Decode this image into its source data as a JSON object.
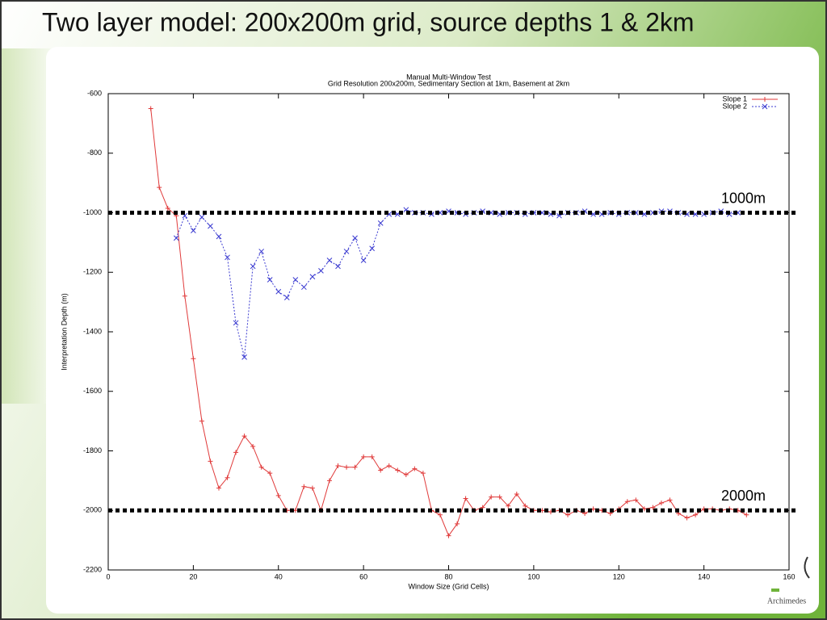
{
  "slide_title": "Two layer model: 200x200m grid, source depths 1 & 2km",
  "logo": "Archimedes",
  "chart_data": {
    "type": "line",
    "title": "Manual Multi-Window Test",
    "subtitle": "Grid Resolution 200x200m, Sedimentary Section at 1km, Basement at 2km",
    "x_label": "Window Size (Grid Cells)",
    "y_label": "Interpretation Depth (m)",
    "xlim": [
      0,
      160
    ],
    "xticks": [
      0,
      20,
      40,
      60,
      80,
      100,
      120,
      140,
      160
    ],
    "ylim": [
      -2200,
      -600
    ],
    "yticks": [
      -2200,
      -2000,
      -1800,
      -1600,
      -1400,
      -1200,
      -1000,
      -800,
      -600
    ],
    "grid": false,
    "legend": "top-right",
    "series": [
      {
        "name": "Slope 1",
        "color": "#e03a3a",
        "marker": "+",
        "x": [
          10,
          12,
          14,
          16,
          18,
          20,
          22,
          24,
          26,
          28,
          30,
          32,
          34,
          36,
          38,
          40,
          42,
          44,
          46,
          48,
          50,
          52,
          54,
          56,
          58,
          60,
          62,
          64,
          66,
          68,
          70,
          72,
          74,
          76,
          78,
          80,
          82,
          84,
          86,
          88,
          90,
          92,
          94,
          96,
          98,
          100,
          102,
          104,
          106,
          108,
          110,
          112,
          114,
          116,
          118,
          120,
          122,
          124,
          126,
          128,
          130,
          132,
          134,
          136,
          138,
          140,
          142,
          144,
          146,
          148,
          150
        ],
        "values": [
          -650,
          -915,
          -985,
          -1010,
          -1280,
          -1490,
          -1700,
          -1835,
          -1925,
          -1890,
          -1805,
          -1750,
          -1785,
          -1855,
          -1875,
          -1950,
          -2000,
          -2000,
          -1920,
          -1925,
          -2000,
          -1900,
          -1850,
          -1855,
          -1855,
          -1820,
          -1820,
          -1865,
          -1850,
          -1865,
          -1880,
          -1860,
          -1875,
          -2000,
          -2015,
          -2085,
          -2045,
          -1960,
          -2000,
          -1990,
          -1955,
          -1955,
          -1985,
          -1945,
          -1985,
          -2000,
          -2000,
          -2005,
          -2000,
          -2015,
          -2000,
          -2010,
          -1995,
          -2000,
          -2010,
          -1995,
          -1970,
          -1965,
          -1995,
          -1990,
          -1975,
          -1965,
          -2010,
          -2025,
          -2015,
          -1995,
          -1995,
          -2000,
          -1995,
          -2000,
          -2015
        ]
      },
      {
        "name": "Slope 2",
        "color": "#3a3ad0",
        "marker": "x",
        "x": [
          16,
          18,
          20,
          22,
          24,
          26,
          28,
          30,
          32,
          34,
          36,
          38,
          40,
          42,
          44,
          46,
          48,
          50,
          52,
          54,
          56,
          58,
          60,
          62,
          64,
          66,
          68,
          70,
          72,
          74,
          76,
          78,
          80,
          82,
          84,
          86,
          88,
          90,
          92,
          94,
          96,
          98,
          100,
          102,
          104,
          106,
          108,
          110,
          112,
          114,
          116,
          118,
          120,
          122,
          124,
          126,
          128,
          130,
          132,
          134,
          136,
          138,
          140,
          142,
          144,
          146,
          148
        ],
        "values": [
          -1085,
          -1010,
          -1060,
          -1015,
          -1045,
          -1080,
          -1150,
          -1370,
          -1485,
          -1180,
          -1130,
          -1225,
          -1265,
          -1285,
          -1225,
          -1250,
          -1215,
          -1195,
          -1160,
          -1180,
          -1130,
          -1085,
          -1160,
          -1120,
          -1035,
          -1005,
          -1005,
          -990,
          -1000,
          -1000,
          -1005,
          -1000,
          -995,
          -1000,
          -1005,
          -1000,
          -995,
          -1000,
          -1005,
          -1000,
          -1000,
          -1005,
          -1000,
          -1000,
          -1005,
          -1010,
          -1000,
          -1000,
          -995,
          -1005,
          -1005,
          -1000,
          -1005,
          -1000,
          -1000,
          -1005,
          -1000,
          -995,
          -995,
          -1000,
          -1005,
          -1005,
          -1005,
          -1000,
          -995,
          -1005,
          -1000
        ]
      }
    ],
    "reference_lines": [
      {
        "label": "1000m",
        "y": -1000
      },
      {
        "label": "2000m",
        "y": -2000
      }
    ]
  }
}
